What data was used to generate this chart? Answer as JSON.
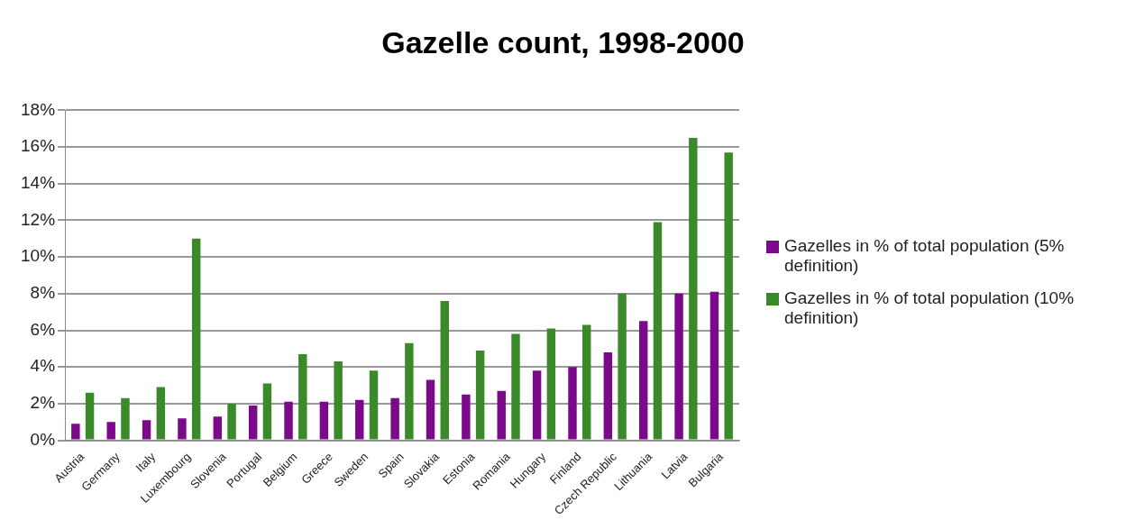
{
  "chart_data": {
    "type": "bar",
    "title": "Gazelle count, 1998-2000",
    "categories": [
      "Austria",
      "Germany",
      "Italy",
      "Luxembourg",
      "Slovenia",
      "Portugal",
      "Belgium",
      "Greece",
      "Sweden",
      "Spain",
      "Slovakia",
      "Estonia",
      "Romania",
      "Hungary",
      "Finland",
      "Czech Republic",
      "Lithuania",
      "Latvia",
      "Bulgaria"
    ],
    "series": [
      {
        "name": "Gazelles in % of total population (5% definition)",
        "color": "#7a0a8a",
        "values": [
          0.9,
          1.0,
          1.1,
          1.2,
          1.3,
          1.9,
          2.1,
          2.1,
          2.2,
          2.3,
          3.3,
          2.5,
          2.7,
          3.8,
          4.0,
          4.8,
          6.5,
          8.0,
          8.1
        ]
      },
      {
        "name": "Gazelles in % of total population (10% definition)",
        "color": "#3a8a2a",
        "values": [
          2.6,
          2.3,
          2.9,
          11.0,
          2.0,
          3.1,
          4.7,
          4.3,
          3.8,
          5.3,
          7.6,
          4.9,
          5.8,
          6.1,
          6.3,
          8.0,
          11.9,
          16.5,
          15.7
        ]
      }
    ],
    "ylim": [
      0,
      18
    ],
    "yticks": [
      {
        "value": 0,
        "label": "0%"
      },
      {
        "value": 2,
        "label": "2%"
      },
      {
        "value": 4,
        "label": "4%"
      },
      {
        "value": 6,
        "label": "6%"
      },
      {
        "value": 8,
        "label": "8%"
      },
      {
        "value": 10,
        "label": "10%"
      },
      {
        "value": 12,
        "label": "12%"
      },
      {
        "value": 14,
        "label": "14%"
      },
      {
        "value": 16,
        "label": "16%"
      },
      {
        "value": 18,
        "label": "18%"
      }
    ],
    "grid": "y",
    "legend": "right"
  }
}
